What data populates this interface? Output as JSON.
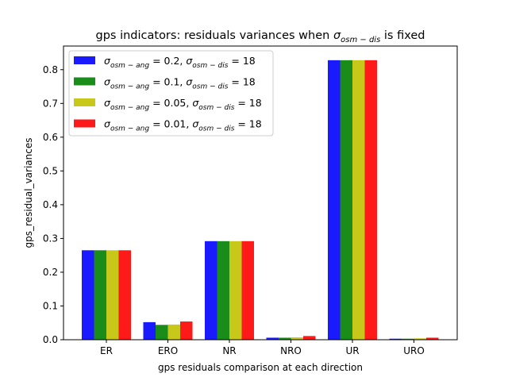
{
  "chart_data": {
    "type": "bar",
    "title": {
      "prefix": "gps indicators: residuals variances when ",
      "sym": "σ",
      "sub": "osm − dis",
      "suffix": " is fixed"
    },
    "xlabel": "gps residuals comparison at each direction",
    "ylabel": "gps_residual_variances",
    "categories": [
      "ER",
      "ERO",
      "NR",
      "NRO",
      "UR",
      "URO"
    ],
    "ylim": [
      0,
      0.87
    ],
    "yticks": [
      "0.0",
      "0.1",
      "0.2",
      "0.3",
      "0.4",
      "0.5",
      "0.6",
      "0.7",
      "0.8"
    ],
    "legend_position": "upper-left",
    "grid": false,
    "series": [
      {
        "label": {
          "sym1": "σ",
          "sub1": "osm − ang",
          "val1": " = 0.2, ",
          "sym2": "σ",
          "sub2": "osm − dis",
          "val2": " = 18"
        },
        "color": "#1a1aff",
        "values": [
          0.265,
          0.052,
          0.292,
          0.006,
          0.828,
          0.003
        ]
      },
      {
        "label": {
          "sym1": "σ",
          "sub1": "osm − ang",
          "val1": " = 0.1, ",
          "sym2": "σ",
          "sub2": "osm − dis",
          "val2": " = 18"
        },
        "color": "#1a8c1a",
        "values": [
          0.265,
          0.044,
          0.292,
          0.006,
          0.828,
          0.003
        ]
      },
      {
        "label": {
          "sym1": "σ",
          "sub1": "osm − ang",
          "val1": " = 0.05, ",
          "sym2": "σ",
          "sub2": "osm − dis",
          "val2": " = 18"
        },
        "color": "#c8c81a",
        "values": [
          0.265,
          0.045,
          0.292,
          0.007,
          0.828,
          0.004
        ]
      },
      {
        "label": {
          "sym1": "σ",
          "sub1": "osm − ang",
          "val1": " = 0.01, ",
          "sym2": "σ",
          "sub2": "osm − dis",
          "val2": " = 18"
        },
        "color": "#ff1a1a",
        "values": [
          0.265,
          0.054,
          0.292,
          0.011,
          0.828,
          0.006
        ]
      }
    ]
  }
}
